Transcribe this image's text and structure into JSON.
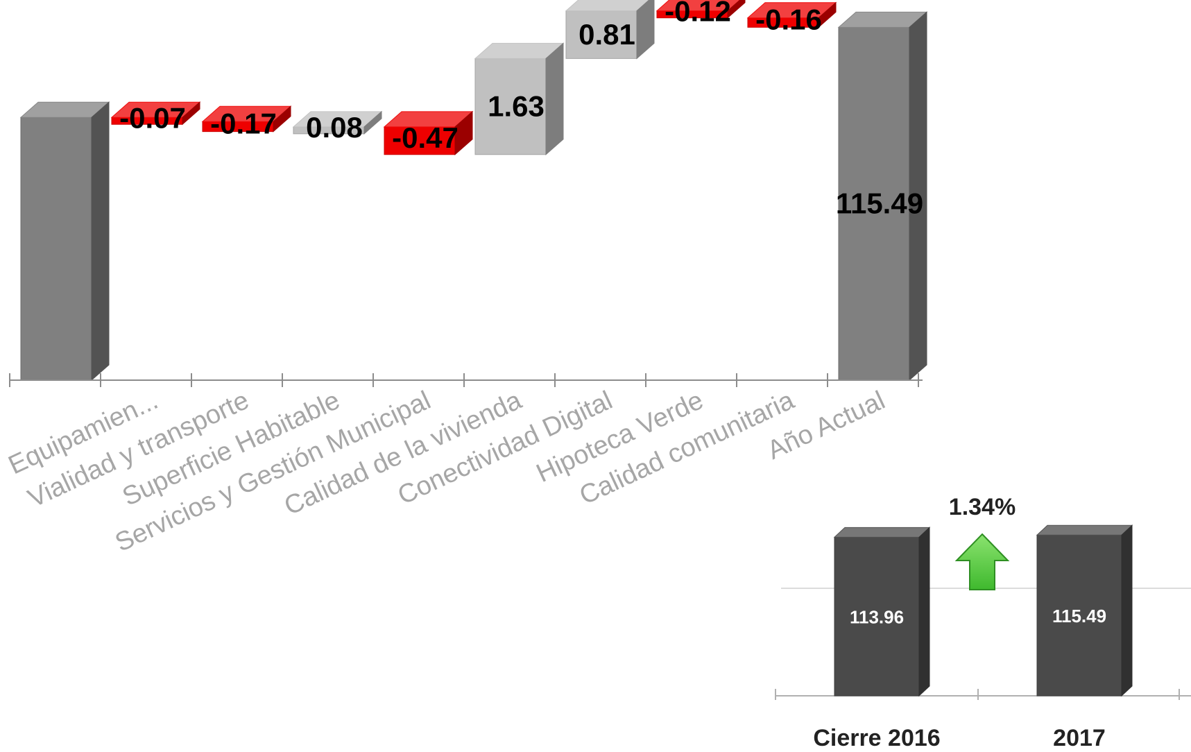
{
  "chart_data": [
    {
      "type": "bar",
      "subtype": "waterfall",
      "categories": [
        "",
        "Equipamien...",
        "Vialidad y transporte",
        "Superficie Habitable",
        "Servicios y Gestión Municipal",
        "Calidad de la vivienda",
        "Conectividad Digital",
        "Hipoteca Verde",
        "Calidad comunitaria",
        "Año Actual"
      ],
      "start_value": 113.96,
      "deltas": [
        -0.07,
        -0.17,
        0.08,
        -0.47,
        1.63,
        0.81,
        -0.12,
        -0.16
      ],
      "data_labels": [
        "",
        "-0.07",
        "-0.17",
        "0.08",
        "-0.47",
        "1.63",
        "0.81",
        "-0.12",
        "-0.16",
        "115.49"
      ],
      "total_value": 115.49,
      "ylim": [
        109.5,
        115.6
      ],
      "grid": false,
      "colors": {
        "total": "#808080",
        "increase": "#c0c0c0",
        "decrease": "#ee0000"
      }
    },
    {
      "type": "bar",
      "categories": [
        "Cierre 2016",
        "2017"
      ],
      "values": [
        113.96,
        115.49
      ],
      "data_labels": [
        "113.96",
        "115.49"
      ],
      "annotation": "1.34%",
      "ylim": [
        0,
        150
      ],
      "grid": true,
      "colors": {
        "bar": "#4a4a4a",
        "arrow": "#3fb92e"
      }
    }
  ]
}
